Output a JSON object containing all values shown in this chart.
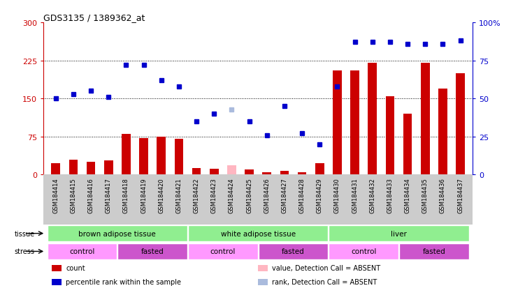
{
  "title": "GDS3135 / 1389362_at",
  "samples": [
    "GSM184414",
    "GSM184415",
    "GSM184416",
    "GSM184417",
    "GSM184418",
    "GSM184419",
    "GSM184420",
    "GSM184421",
    "GSM184422",
    "GSM184423",
    "GSM184424",
    "GSM184425",
    "GSM184426",
    "GSM184427",
    "GSM184428",
    "GSM184429",
    "GSM184430",
    "GSM184431",
    "GSM184432",
    "GSM184433",
    "GSM184434",
    "GSM184435",
    "GSM184436",
    "GSM184437"
  ],
  "count_values": [
    22,
    30,
    25,
    28,
    80,
    72,
    75,
    70,
    13,
    12,
    18,
    10,
    5,
    7,
    4,
    22,
    205,
    205,
    220,
    155,
    120,
    220,
    170,
    200
  ],
  "count_absent": [
    false,
    false,
    false,
    false,
    false,
    false,
    false,
    false,
    false,
    false,
    true,
    false,
    false,
    false,
    false,
    false,
    false,
    false,
    false,
    false,
    false,
    false,
    false,
    false
  ],
  "rank_pct": [
    50,
    53,
    55,
    51,
    72,
    72,
    62,
    58,
    35,
    40,
    43,
    35,
    26,
    45,
    27,
    20,
    58,
    87,
    87,
    87,
    86,
    86,
    86,
    88
  ],
  "rank_absent": [
    false,
    false,
    false,
    false,
    false,
    false,
    false,
    false,
    false,
    false,
    true,
    false,
    false,
    false,
    false,
    false,
    false,
    false,
    false,
    false,
    false,
    false,
    false,
    false
  ],
  "tissue_groups": [
    {
      "label": "brown adipose tissue",
      "start": 0,
      "end": 7,
      "color": "#90EE90"
    },
    {
      "label": "white adipose tissue",
      "start": 8,
      "end": 15,
      "color": "#90EE90"
    },
    {
      "label": "liver",
      "start": 16,
      "end": 23,
      "color": "#90EE90"
    }
  ],
  "stress_groups": [
    {
      "label": "control",
      "start": 0,
      "end": 3
    },
    {
      "label": "fasted",
      "start": 4,
      "end": 7
    },
    {
      "label": "control",
      "start": 8,
      "end": 11
    },
    {
      "label": "fasted",
      "start": 12,
      "end": 15
    },
    {
      "label": "control",
      "start": 16,
      "end": 19
    },
    {
      "label": "fasted",
      "start": 20,
      "end": 23
    }
  ],
  "stress_colors": {
    "control": "#FF99FF",
    "fasted": "#CC55CC"
  },
  "ylim_left": [
    0,
    300
  ],
  "ylim_right": [
    0,
    100
  ],
  "yticks_left": [
    0,
    75,
    150,
    225,
    300
  ],
  "yticks_right": [
    0,
    25,
    50,
    75,
    100
  ],
  "bar_color": "#CC0000",
  "dot_color": "#0000CC",
  "absent_bar_color": "#FFB6C1",
  "absent_dot_color": "#AABBDD",
  "legend_items": [
    {
      "label": "count",
      "color": "#CC0000"
    },
    {
      "label": "percentile rank within the sample",
      "color": "#0000CC"
    },
    {
      "label": "value, Detection Call = ABSENT",
      "color": "#FFB6C1"
    },
    {
      "label": "rank, Detection Call = ABSENT",
      "color": "#AABBDD"
    }
  ],
  "hgrid_values": [
    75,
    150,
    225
  ]
}
